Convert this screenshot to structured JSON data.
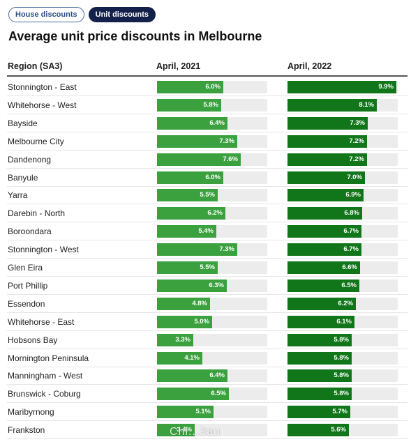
{
  "tabs": [
    {
      "label": "House discounts",
      "active": false
    },
    {
      "label": "Unit discounts",
      "active": true
    }
  ],
  "colors": {
    "bar_2021": "#3aa13e",
    "bar_2022": "#11761a",
    "track": "#ececec",
    "active_tab": "#13204a"
  },
  "watermark": "Chi...3au",
  "chart_data": {
    "type": "bar",
    "title": "Average unit price discounts in Melbourne",
    "columns": [
      "Region (SA3)",
      "April, 2021",
      "April, 2022"
    ],
    "xlim": [
      0,
      10
    ],
    "categories": [
      "Stonnington - East",
      "Whitehorse - West",
      "Bayside",
      "Melbourne City",
      "Dandenong",
      "Banyule",
      "Yarra",
      "Darebin - North",
      "Boroondara",
      "Stonnington - West",
      "Glen Eira",
      "Port Phillip",
      "Essendon",
      "Whitehorse - East",
      "Hobsons Bay",
      "Mornington Peninsula",
      "Manningham - West",
      "Brunswick - Coburg",
      "Maribyrnong",
      "Frankston"
    ],
    "series": [
      {
        "name": "April, 2021",
        "values": [
          6.0,
          5.8,
          6.4,
          7.3,
          7.6,
          6.0,
          5.5,
          6.2,
          5.4,
          7.3,
          5.5,
          6.3,
          4.8,
          5.0,
          3.3,
          4.1,
          6.4,
          6.5,
          5.1,
          3.4
        ],
        "labels": [
          "6.0%",
          "5.8%",
          "6.4%",
          "7.3%",
          "7.6%",
          "6.0%",
          "5.5%",
          "6.2%",
          "5.4%",
          "7.3%",
          "5.5%",
          "6.3%",
          "4.8%",
          "5.0%",
          "3.3%",
          "4.1%",
          "6.4%",
          "6.5%",
          "5.1%",
          "3.4%"
        ]
      },
      {
        "name": "April, 2022",
        "values": [
          9.9,
          8.1,
          7.3,
          7.2,
          7.2,
          7.0,
          6.9,
          6.8,
          6.7,
          6.7,
          6.6,
          6.5,
          6.2,
          6.1,
          5.8,
          5.8,
          5.8,
          5.8,
          5.7,
          5.6
        ],
        "labels": [
          "9.9%",
          "8.1%",
          "7.3%",
          "7.2%",
          "7.2%",
          "7.0%",
          "6.9%",
          "6.8%",
          "6.7%",
          "6.7%",
          "6.6%",
          "6.5%",
          "6.2%",
          "6.1%",
          "5.8%",
          "5.8%",
          "5.8%",
          "5.8%",
          "5.7%",
          "5.6%"
        ]
      }
    ]
  }
}
